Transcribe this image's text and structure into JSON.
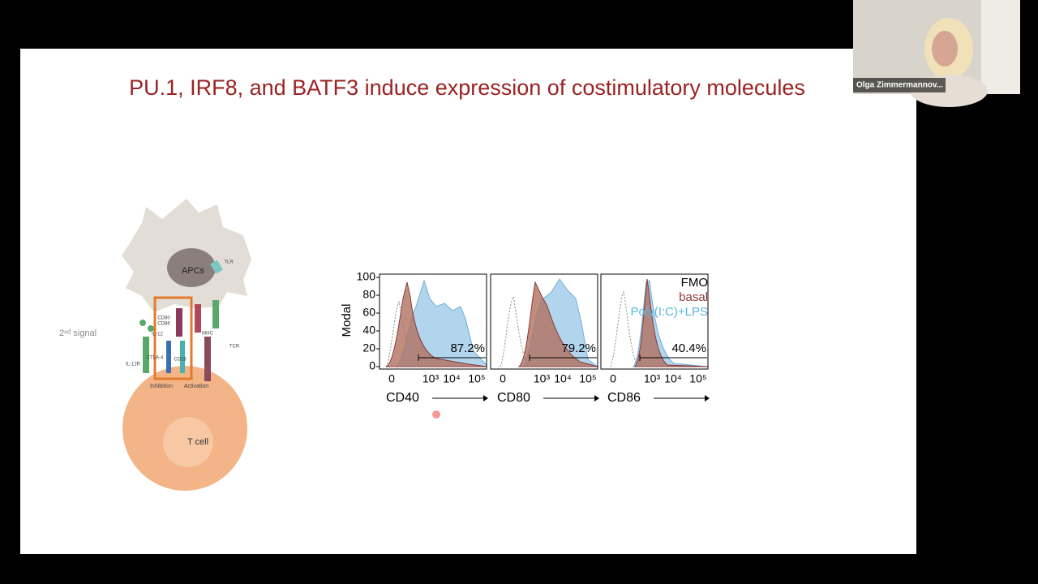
{
  "participant": {
    "name": "Olga Zimmermannov..."
  },
  "slide": {
    "title": "PU.1, IRF8, and BATF3 induce expression of costimulatory molecules",
    "diagram": {
      "signal": "2ⁿᵈ signal",
      "apc": "APCs",
      "tlr": "TLR",
      "cd80": "CD80",
      "cd86": "CD86",
      "il12": "IL-12",
      "mhc": "MHC",
      "tcr": "TCR",
      "ctla4": "CTLA-4",
      "cd28": "CD28",
      "il12r": "IL-12R",
      "inhibition": "Inhibition",
      "activation": "Activation",
      "tcell": "T cell"
    },
    "flow": {
      "y_label": "Modal",
      "y_ticks": [
        "100",
        "80",
        "60",
        "40",
        "20",
        "0"
      ],
      "x_ticks": [
        "0",
        "10³",
        "10⁴",
        "10⁵"
      ],
      "panels": [
        {
          "marker": "CD40",
          "percent": "87.2%"
        },
        {
          "marker": "CD80",
          "percent": "79.2%"
        },
        {
          "marker": "CD86",
          "percent": "40.4%"
        }
      ],
      "legend": [
        "FMO",
        "basal",
        "Poly(I:C)+LPS"
      ]
    }
  }
}
